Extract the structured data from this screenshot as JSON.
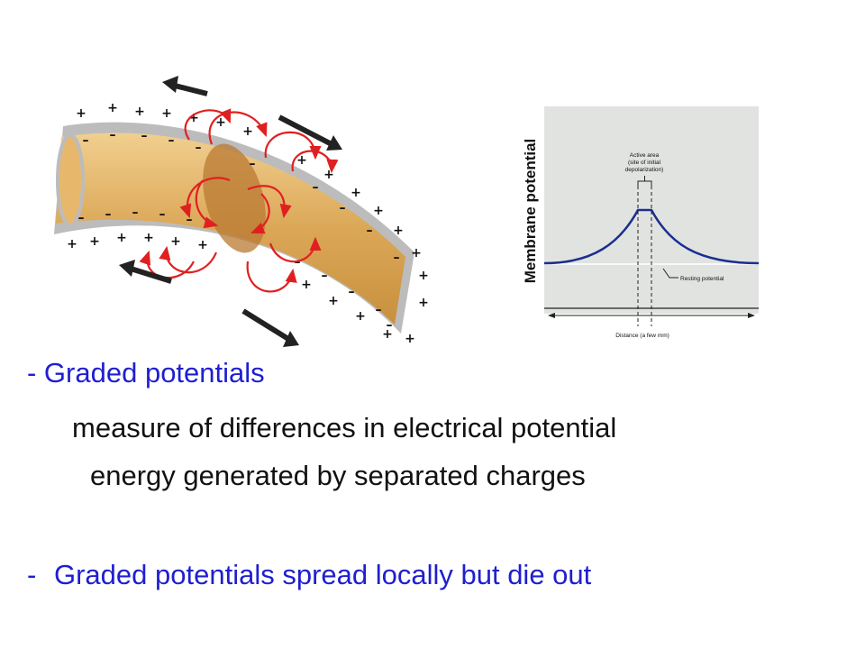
{
  "axon_diagram": {
    "membrane_color": "#bcbcbc",
    "axon_color": "#dba757",
    "depolarized_color": "#b97a33",
    "current_arrow_color": "#e02020",
    "direction_arrow_color": "#222222",
    "plus_sign": "+",
    "minus_sign": "–"
  },
  "potential_graph": {
    "y_axis_label": "Membrane potential",
    "active_area_label": [
      "Active area",
      "(site of initial",
      "depolarization)"
    ],
    "resting_label": "Resting potential",
    "x_axis_label": "Distance (a few mm)",
    "panel_color": "#e1e3e1",
    "curve_color": "#1b2f8f"
  },
  "text": {
    "bullet_1": "- Graded potentials",
    "line_2": "measure of differences in electrical potential",
    "line_3": "energy generated by separated charges",
    "bullet_2_dash": "-",
    "bullet_2": "Graded potentials spread locally but die out",
    "accent_color": "#1f1fcf"
  }
}
